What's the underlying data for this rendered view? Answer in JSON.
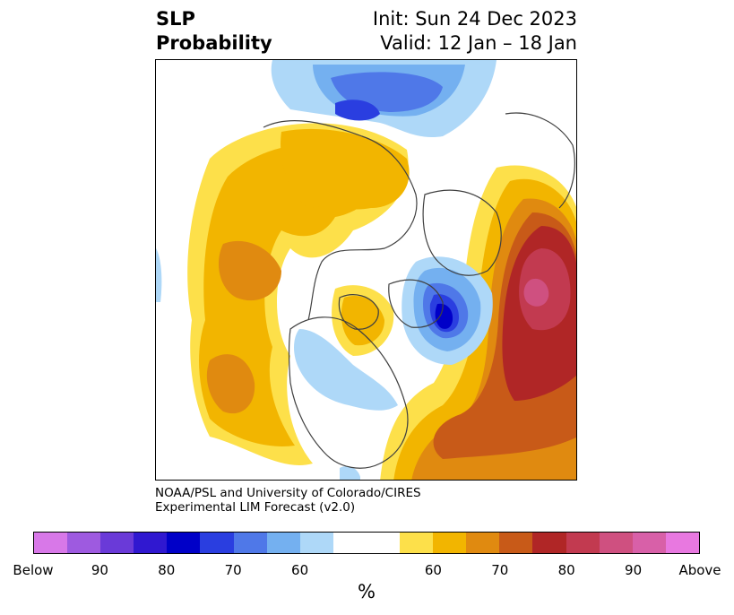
{
  "title": {
    "left_line1": "SLP",
    "left_line2": "Probability",
    "right_line1": "Init: Sun 24 Dec 2023",
    "right_line2": "Valid: 12 Jan – 18 Jan"
  },
  "credit": {
    "line1": "NOAA/PSL and University of Colorado/CIRES",
    "line2": "Experimental LIM Forecast (v2.0)"
  },
  "colorbar": {
    "colors": [
      "#d878e8",
      "#9e5ae0",
      "#6a3ad8",
      "#3018d0",
      "#0000c8",
      "#2a3ee0",
      "#4f78e8",
      "#74b0f0",
      "#aed8f8",
      "#ffffff",
      "#ffffff",
      "#fde04a",
      "#f2b500",
      "#e08a10",
      "#c85a18",
      "#b02626",
      "#c23a50",
      "#cf5080",
      "#d860a8",
      "#e878e0"
    ],
    "ticks": [
      "Below",
      "90",
      "80",
      "70",
      "60",
      "60",
      "70",
      "80",
      "90",
      "Above"
    ],
    "unit": "%"
  },
  "map_layers": {
    "above": {
      "p50_60": "#fde04a",
      "p60_65": "#f2b500",
      "p65_70": "#e08a10",
      "p70_75": "#c85a18",
      "p75_80": "#b02626",
      "p80_85": "#c23a50",
      "p85_90": "#cf5080"
    },
    "below": {
      "p50_60": "#aed8f8",
      "p60_65": "#74b0f0",
      "p65_70": "#4f78e8",
      "p70_75": "#2a3ee0",
      "p75_80": "#0000c8"
    },
    "coastline": "#404040"
  }
}
